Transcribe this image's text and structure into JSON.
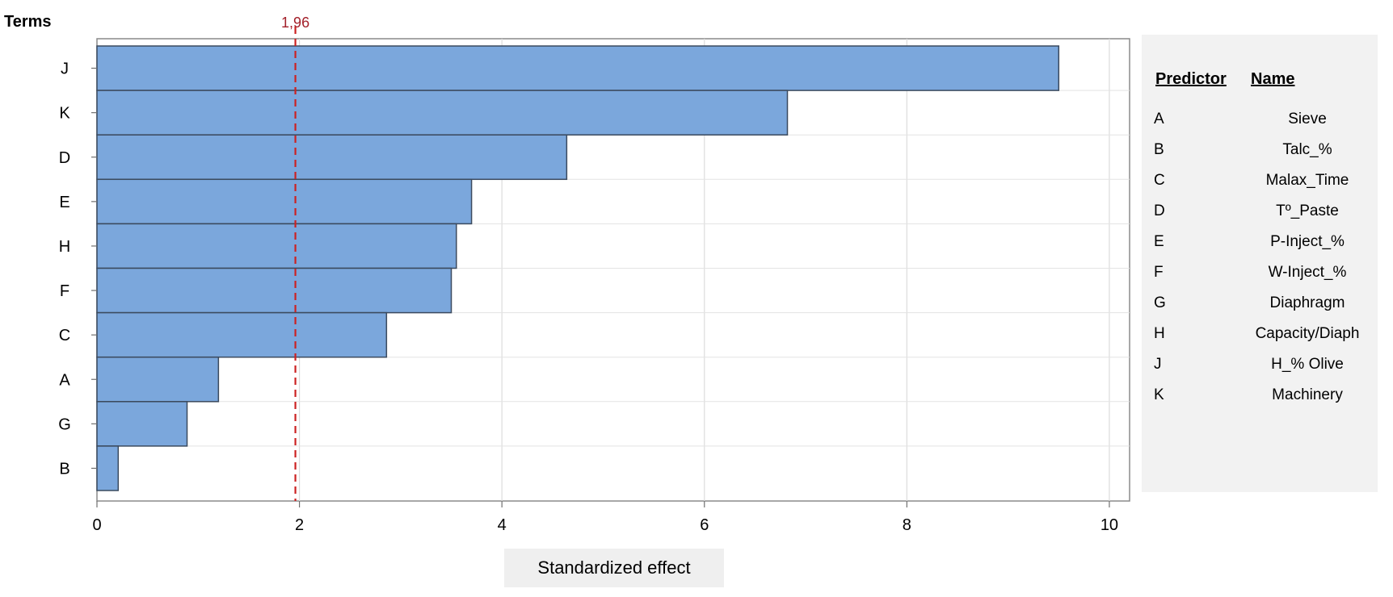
{
  "chart_data": {
    "type": "bar",
    "orientation": "horizontal",
    "title": "",
    "ylabel": "Terms",
    "xlabel": "Standardized effect",
    "xlim": [
      0,
      10.2
    ],
    "xticks": [
      0,
      2,
      4,
      6,
      8,
      10
    ],
    "grid": true,
    "categories": [
      "J",
      "K",
      "D",
      "E",
      "H",
      "F",
      "C",
      "A",
      "G",
      "B"
    ],
    "values": [
      9.5,
      6.82,
      4.64,
      3.7,
      3.55,
      3.5,
      2.86,
      1.2,
      0.89,
      0.21
    ],
    "reference_line": {
      "value": 1.96,
      "label": "1,96"
    },
    "bar_color": "#7ba7dc",
    "bar_edge_color": "#3b4a5e",
    "reference_color": "#cc2222"
  },
  "legend": {
    "col1_header": "Predictor",
    "col2_header": "Name",
    "rows": [
      {
        "code": "A",
        "name": "Sieve"
      },
      {
        "code": "B",
        "name": "Talc_%"
      },
      {
        "code": "C",
        "name": "Malax_Time"
      },
      {
        "code": "D",
        "name": "Tº_Paste"
      },
      {
        "code": "E",
        "name": "P-Inject_%"
      },
      {
        "code": "F",
        "name": "W-Inject_%"
      },
      {
        "code": "G",
        "name": "Diaphragm"
      },
      {
        "code": "H",
        "name": "Capacity/Diaph"
      },
      {
        "code": "J",
        "name": "H_% Olive"
      },
      {
        "code": "K",
        "name": "Machinery"
      }
    ]
  }
}
